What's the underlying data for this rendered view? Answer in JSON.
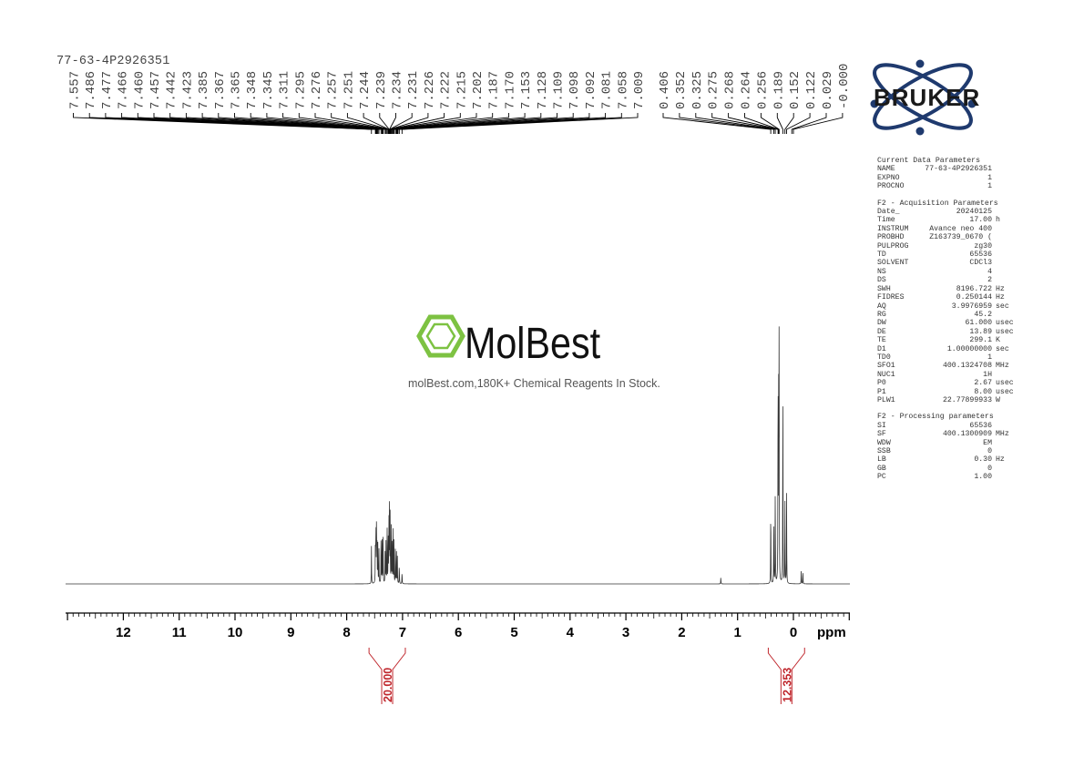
{
  "sample_name": "77-63-4P2926351",
  "brand": {
    "bruker_text": "BRUKER",
    "watermark_name": "MolBest",
    "watermark_tagline": "molBest.com,180K+ Chemical Reagents In Stock.",
    "watermark_color": "#7dc242"
  },
  "colors": {
    "spectrum": "#333333",
    "integral": "#c0272d",
    "bruker_blue": "#1f3a6e"
  },
  "params": {
    "groups": [
      {
        "title": "Current Data Parameters",
        "rows": [
          {
            "key": "NAME",
            "value": "77-63-4P2926351",
            "unit": ""
          },
          {
            "key": "EXPNO",
            "value": "1",
            "unit": ""
          },
          {
            "key": "PROCNO",
            "value": "1",
            "unit": ""
          }
        ]
      },
      {
        "title": "F2 - Acquisition Parameters",
        "rows": [
          {
            "key": "Date_",
            "value": "20240125",
            "unit": ""
          },
          {
            "key": "Time",
            "value": "17.00",
            "unit": "h"
          },
          {
            "key": "INSTRUM",
            "value": "Avance neo 400",
            "unit": ""
          },
          {
            "key": "PROBHD",
            "value": "Z163739_0670 (",
            "unit": ""
          },
          {
            "key": "PULPROG",
            "value": "zg30",
            "unit": ""
          },
          {
            "key": "TD",
            "value": "65536",
            "unit": ""
          },
          {
            "key": "SOLVENT",
            "value": "CDCl3",
            "unit": ""
          },
          {
            "key": "NS",
            "value": "4",
            "unit": ""
          },
          {
            "key": "DS",
            "value": "2",
            "unit": ""
          },
          {
            "key": "SWH",
            "value": "8196.722",
            "unit": "Hz"
          },
          {
            "key": "FIDRES",
            "value": "0.250144",
            "unit": "Hz"
          },
          {
            "key": "AQ",
            "value": "3.9976959",
            "unit": "sec"
          },
          {
            "key": "RG",
            "value": "45.2",
            "unit": ""
          },
          {
            "key": "DW",
            "value": "61.000",
            "unit": "usec"
          },
          {
            "key": "DE",
            "value": "13.89",
            "unit": "usec"
          },
          {
            "key": "TE",
            "value": "299.1",
            "unit": "K"
          },
          {
            "key": "D1",
            "value": "1.00000000",
            "unit": "sec"
          },
          {
            "key": "TD0",
            "value": "1",
            "unit": ""
          },
          {
            "key": "SFO1",
            "value": "400.1324708",
            "unit": "MHz"
          },
          {
            "key": "NUC1",
            "value": "1H",
            "unit": ""
          },
          {
            "key": "P0",
            "value": "2.67",
            "unit": "usec"
          },
          {
            "key": "P1",
            "value": "8.00",
            "unit": "usec"
          },
          {
            "key": "PLW1",
            "value": "22.77899933",
            "unit": "W"
          }
        ]
      },
      {
        "title": "F2 - Processing parameters",
        "rows": [
          {
            "key": "SI",
            "value": "65536",
            "unit": ""
          },
          {
            "key": "SF",
            "value": "400.1300909",
            "unit": "MHz"
          },
          {
            "key": "WDW",
            "value": "EM",
            "unit": ""
          },
          {
            "key": "SSB",
            "value": "0",
            "unit": ""
          },
          {
            "key": "LB",
            "value": "0.30",
            "unit": "Hz"
          },
          {
            "key": "GB",
            "value": "0",
            "unit": ""
          },
          {
            "key": "PC",
            "value": "1.00",
            "unit": ""
          }
        ]
      }
    ]
  },
  "chart_data": {
    "type": "line",
    "title": "",
    "xlabel": "ppm",
    "ylabel": "",
    "x_direction": "reversed",
    "xlim": [
      13.0,
      -1.0
    ],
    "x_ticks": [
      12,
      11,
      10,
      9,
      8,
      7,
      6,
      5,
      4,
      3,
      2,
      1,
      0
    ],
    "x_tick_labels": [
      "12",
      "11",
      "10",
      "9",
      "8",
      "7",
      "6",
      "5",
      "4",
      "3",
      "2",
      "1",
      "0"
    ],
    "peak_labels_group1": [
      "7.557",
      "7.486",
      "7.477",
      "7.466",
      "7.460",
      "7.457",
      "7.442",
      "7.423",
      "7.385",
      "7.367",
      "7.365",
      "7.348",
      "7.345",
      "7.311",
      "7.295",
      "7.276",
      "7.257",
      "7.251",
      "7.244",
      "7.239",
      "7.234",
      "7.231",
      "7.226",
      "7.222",
      "7.215",
      "7.202",
      "7.187",
      "7.170",
      "7.153",
      "7.128",
      "7.109",
      "7.098",
      "7.092",
      "7.081",
      "7.058",
      "7.009"
    ],
    "peak_labels_group2": [
      "0.406",
      "0.352",
      "0.325",
      "0.275",
      "0.268",
      "0.264",
      "0.256",
      "0.189",
      "0.152",
      "0.122",
      "0.029",
      "-0.000"
    ],
    "integrals": [
      {
        "from": 7.6,
        "to": 6.95,
        "value": "20.000"
      },
      {
        "from": 0.45,
        "to": -0.2,
        "value": "12.353"
      }
    ],
    "peaks": [
      {
        "ppm": 7.557,
        "h": 0.14
      },
      {
        "ppm": 7.486,
        "h": 0.19
      },
      {
        "ppm": 7.477,
        "h": 0.24
      },
      {
        "ppm": 7.466,
        "h": 0.26
      },
      {
        "ppm": 7.457,
        "h": 0.21
      },
      {
        "ppm": 7.442,
        "h": 0.16
      },
      {
        "ppm": 7.423,
        "h": 0.13
      },
      {
        "ppm": 7.385,
        "h": 0.17
      },
      {
        "ppm": 7.367,
        "h": 0.22
      },
      {
        "ppm": 7.348,
        "h": 0.2
      },
      {
        "ppm": 7.311,
        "h": 0.15
      },
      {
        "ppm": 7.295,
        "h": 0.18
      },
      {
        "ppm": 7.276,
        "h": 0.2
      },
      {
        "ppm": 7.257,
        "h": 0.23
      },
      {
        "ppm": 7.244,
        "h": 0.25
      },
      {
        "ppm": 7.234,
        "h": 0.31
      },
      {
        "ppm": 7.222,
        "h": 0.27
      },
      {
        "ppm": 7.202,
        "h": 0.21
      },
      {
        "ppm": 7.187,
        "h": 0.17
      },
      {
        "ppm": 7.17,
        "h": 0.2
      },
      {
        "ppm": 7.153,
        "h": 0.16
      },
      {
        "ppm": 7.128,
        "h": 0.14
      },
      {
        "ppm": 7.109,
        "h": 0.12
      },
      {
        "ppm": 7.092,
        "h": 0.1
      },
      {
        "ppm": 7.058,
        "h": 0.08
      },
      {
        "ppm": 7.009,
        "h": 0.05
      },
      {
        "ppm": 1.3,
        "h": 0.026
      },
      {
        "ppm": 0.406,
        "h": 0.34
      },
      {
        "ppm": 0.352,
        "h": 0.26
      },
      {
        "ppm": 0.325,
        "h": 0.4
      },
      {
        "ppm": 0.275,
        "h": 0.93
      },
      {
        "ppm": 0.264,
        "h": 0.78
      },
      {
        "ppm": 0.256,
        "h": 0.97
      },
      {
        "ppm": 0.189,
        "h": 0.86
      },
      {
        "ppm": 0.152,
        "h": 0.36
      },
      {
        "ppm": 0.122,
        "h": 0.34
      },
      {
        "ppm": -0.14,
        "h": 0.06
      },
      {
        "ppm": -0.17,
        "h": 0.05
      }
    ]
  }
}
